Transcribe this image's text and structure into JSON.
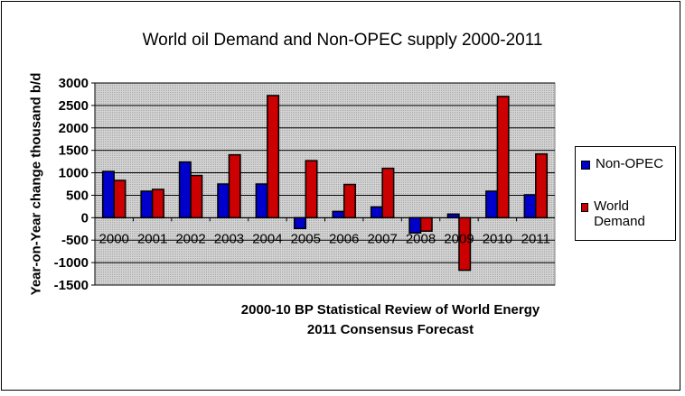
{
  "chart_data": {
    "type": "bar",
    "title": "World oil Demand and Non-OPEC supply  2000-2011",
    "xlabel": "",
    "ylabel": "Year-on-Year change thousand b/d",
    "ylim": [
      -1500,
      3000
    ],
    "yticks": [
      -1500,
      -1000,
      -500,
      0,
      500,
      1000,
      1500,
      2000,
      2500,
      3000
    ],
    "grid": true,
    "legend_position": "right",
    "categories": [
      "2000",
      "2001",
      "2002",
      "2003",
      "2004",
      "2005",
      "2006",
      "2007",
      "2008",
      "2009",
      "2010",
      "2011"
    ],
    "series": [
      {
        "name": "Non-OPEC",
        "color": "#0000cc",
        "values": [
          1030,
          590,
          1240,
          750,
          750,
          -240,
          140,
          240,
          -340,
          80,
          590,
          510
        ]
      },
      {
        "name": "World Demand",
        "color": "#cc0000",
        "values": [
          830,
          630,
          940,
          1400,
          2720,
          1270,
          740,
          1100,
          -300,
          -1170,
          2700,
          1420
        ]
      }
    ],
    "annotations": [
      "2000-10 BP Statistical Review of World Energy",
      "2011 Consensus Forecast"
    ]
  }
}
